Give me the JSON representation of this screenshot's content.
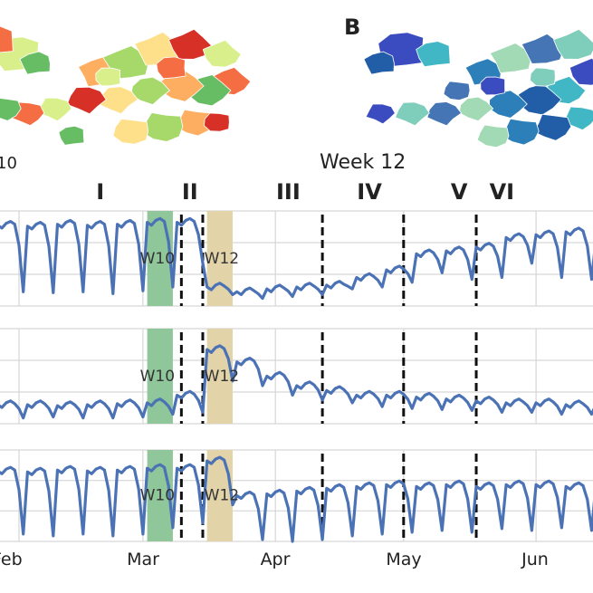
{
  "maps": {
    "left_caption": "10",
    "right_label": "B",
    "right_caption": "Week 12",
    "colors_left": [
      "#d9ef8b",
      "#fee08b",
      "#fdae61",
      "#f46d43",
      "#d73027",
      "#a6d96a",
      "#66bd63"
    ],
    "colors_right": [
      "#3b4cc0",
      "#4575b4",
      "#2c7fb8",
      "#41b6c4",
      "#7fcdbb",
      "#a1dab4",
      "#225ea8"
    ]
  },
  "chart_data": {
    "type": "line",
    "x_unit": "days since Feb 1",
    "xlim": [
      -4,
      135
    ],
    "x_ticks": [
      {
        "day": 0,
        "label": "Feb"
      },
      {
        "day": 29,
        "label": "Mar"
      },
      {
        "day": 60,
        "label": "Apr"
      },
      {
        "day": 90,
        "label": "May"
      },
      {
        "day": 121,
        "label": "Jun"
      }
    ],
    "x_tick_labels_shown": [
      "eb",
      "Mar",
      "Apr",
      "May",
      "Jun"
    ],
    "phases": [
      {
        "label": "I",
        "day": 19
      },
      {
        "label": "II",
        "day": 40
      },
      {
        "label": "III",
        "day": 63
      },
      {
        "label": "IV",
        "day": 82
      },
      {
        "label": "V",
        "day": 103
      },
      {
        "label": "VI",
        "day": 113
      }
    ],
    "phase_boundaries_days": [
      38,
      43,
      71,
      90,
      107
    ],
    "highlight_weeks": [
      {
        "label": "W10",
        "start_day": 30,
        "end_day": 36,
        "color": "#8fc79a"
      },
      {
        "label": "W12",
        "start_day": 44,
        "end_day": 50,
        "color": "#e3d3a8"
      }
    ],
    "series_color": "#4a72b5",
    "week_start_day": -5,
    "weekday_jitter": [
      0,
      -3,
      2,
      4,
      1
    ],
    "panels": [
      {
        "name": "panel-1",
        "ylim": [
          0,
          100
        ],
        "weekly": [
          [
            85,
            15
          ],
          [
            84,
            14
          ],
          [
            86,
            15
          ],
          [
            85,
            13
          ],
          [
            86,
            16
          ],
          [
            88,
            20
          ],
          [
            88,
            45
          ],
          [
            20,
            12
          ],
          [
            15,
            8
          ],
          [
            18,
            10
          ],
          [
            20,
            12
          ],
          [
            22,
            18
          ],
          [
            30,
            20
          ],
          [
            38,
            25
          ],
          [
            55,
            35
          ],
          [
            58,
            28
          ],
          [
            62,
            30
          ],
          [
            72,
            45
          ],
          [
            75,
            30
          ],
          [
            78,
            28
          ],
          [
            70,
            25
          ]
        ]
      },
      {
        "name": "panel-2",
        "ylim": [
          0,
          100
        ],
        "weekly": [
          [
            20,
            6
          ],
          [
            20,
            7
          ],
          [
            19,
            6
          ],
          [
            20,
            6
          ],
          [
            21,
            7
          ],
          [
            22,
            10
          ],
          [
            30,
            12
          ],
          [
            78,
            45
          ],
          [
            65,
            40
          ],
          [
            50,
            30
          ],
          [
            40,
            25
          ],
          [
            35,
            22
          ],
          [
            30,
            18
          ],
          [
            30,
            16
          ],
          [
            28,
            15
          ],
          [
            26,
            14
          ],
          [
            24,
            12
          ],
          [
            22,
            12
          ],
          [
            22,
            10
          ],
          [
            20,
            10
          ],
          [
            20,
            10
          ]
        ]
      },
      {
        "name": "panel-3",
        "ylim": [
          0,
          100
        ],
        "weekly": [
          [
            77,
            8
          ],
          [
            76,
            6
          ],
          [
            78,
            8
          ],
          [
            77,
            6
          ],
          [
            78,
            8
          ],
          [
            80,
            15
          ],
          [
            80,
            20
          ],
          [
            88,
            40
          ],
          [
            50,
            2
          ],
          [
            52,
            0
          ],
          [
            55,
            2
          ],
          [
            58,
            6
          ],
          [
            60,
            8
          ],
          [
            62,
            10
          ],
          [
            60,
            12
          ],
          [
            62,
            10
          ],
          [
            60,
            14
          ],
          [
            62,
            12
          ],
          [
            62,
            15
          ],
          [
            60,
            12
          ],
          [
            62,
            10
          ]
        ]
      }
    ]
  }
}
